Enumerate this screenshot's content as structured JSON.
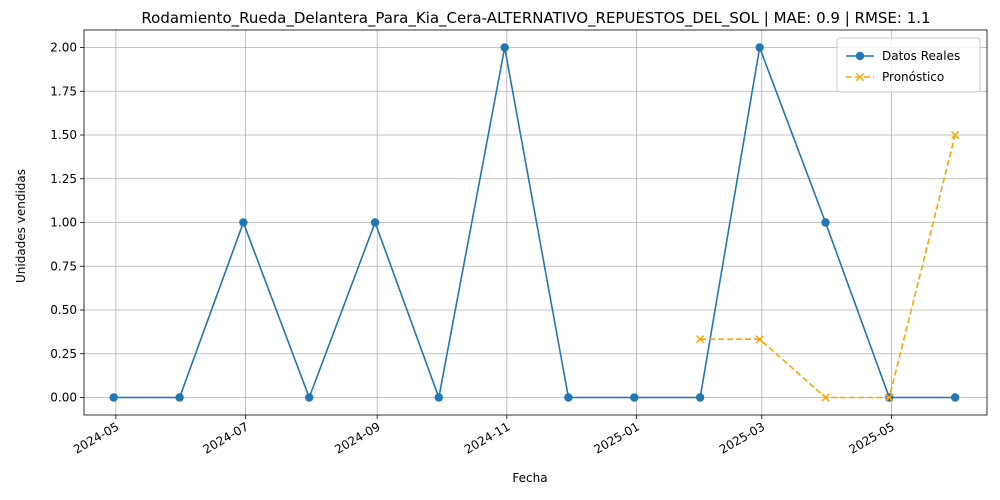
{
  "chart_data": {
    "type": "line",
    "title": "Rodamiento_Rueda_Delantera_Para_Kia_Cera-ALTERNATIVO_REPUESTOS_DEL_SOL | MAE: 0.9 | RMSE: 1.1",
    "xlabel": "Fecha",
    "ylabel": "Unidades vendidas",
    "ylim": [
      -0.1,
      2.1
    ],
    "xlim": [
      "2024-04-16",
      "2025-06-15"
    ],
    "grid": true,
    "legend_position": "top-right",
    "x_ticks": [
      "2024-05",
      "2024-07",
      "2024-09",
      "2024-11",
      "2025-01",
      "2025-03",
      "2025-05"
    ],
    "x_tick_dates": [
      "2024-05-01",
      "2024-07-01",
      "2024-09-01",
      "2024-11-01",
      "2025-01-01",
      "2025-03-01",
      "2025-05-01"
    ],
    "y_ticks": [
      0.0,
      0.25,
      0.5,
      0.75,
      1.0,
      1.25,
      1.5,
      1.75,
      2.0
    ],
    "y_tick_labels": [
      "0.00",
      "0.25",
      "0.50",
      "0.75",
      "1.00",
      "1.25",
      "1.50",
      "1.75",
      "2.00"
    ],
    "series": [
      {
        "name": "Datos Reales",
        "color": "#1f77b4",
        "line_style": "solid",
        "marker": "circle",
        "x": [
          "2024-04-30",
          "2024-05-31",
          "2024-06-30",
          "2024-07-31",
          "2024-08-31",
          "2024-09-30",
          "2024-10-31",
          "2024-11-30",
          "2024-12-31",
          "2025-01-31",
          "2025-02-28",
          "2025-03-31",
          "2025-04-30",
          "2025-05-31"
        ],
        "values": [
          0,
          0,
          1,
          0,
          1,
          0,
          2,
          0,
          0,
          0,
          2,
          1,
          0,
          0
        ]
      },
      {
        "name": "Pronóstico",
        "color": "#ffa500",
        "line_style": "dashed",
        "marker": "x",
        "x": [
          "2025-01-31",
          "2025-02-28",
          "2025-03-31",
          "2025-04-30",
          "2025-05-31"
        ],
        "values": [
          0.333,
          0.333,
          0,
          0,
          1.5
        ]
      }
    ]
  }
}
